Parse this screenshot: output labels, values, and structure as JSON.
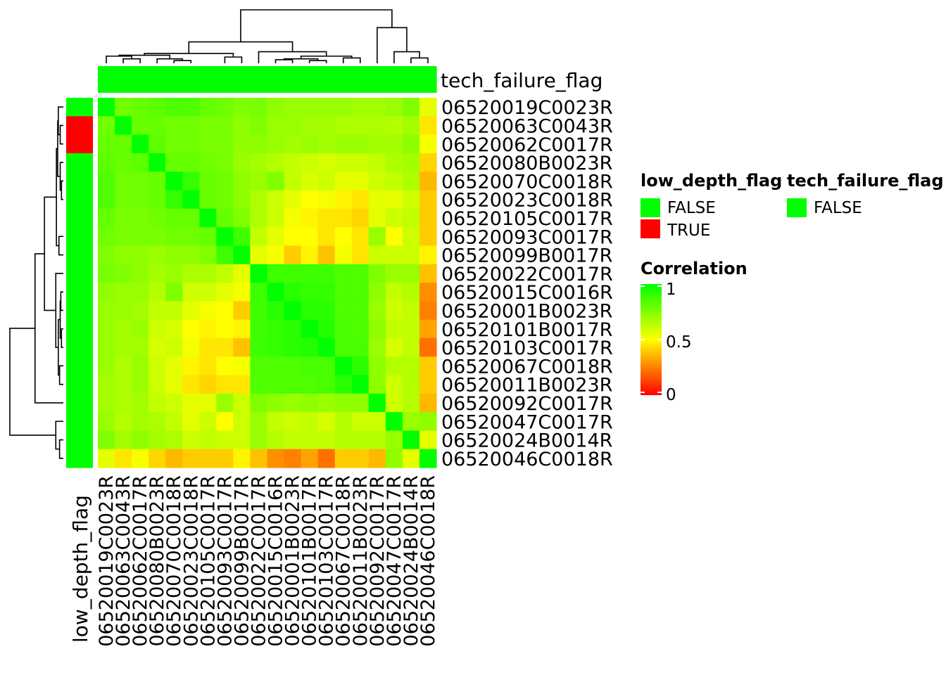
{
  "chart_data": {
    "type": "heatmap",
    "title": "",
    "row_labels": [
      "06520019C0023R",
      "06520063C0043R",
      "06520062C0017R",
      "06520080B0023R",
      "06520070C0018R",
      "06520023C0018R",
      "06520105C0017R",
      "06520093C0017R",
      "06520099B0017R",
      "06520022C0017R",
      "06520015C0016R",
      "06520001B0023R",
      "06520101B0017R",
      "06520103C0017R",
      "06520067C0018R",
      "06520011B0023R",
      "06520092C0017R",
      "06520047C0017R",
      "06520024B0014R",
      "06520046C0018R"
    ],
    "col_labels": [
      "06520019C0023R",
      "06520063C0043R",
      "06520062C0017R",
      "06520080B0023R",
      "06520070C0018R",
      "06520023C0018R",
      "06520105C0017R",
      "06520093C0017R",
      "06520099B0017R",
      "06520022C0017R",
      "06520015C0016R",
      "06520001B0023R",
      "06520101B0017R",
      "06520103C0017R",
      "06520067C0018R",
      "06520011B0023R",
      "06520092C0017R",
      "06520047C0017R",
      "06520024B0014R",
      "06520046C0018R"
    ],
    "values": [
      [
        1.0,
        0.78,
        0.8,
        0.82,
        0.85,
        0.85,
        0.8,
        0.78,
        0.75,
        0.76,
        0.72,
        0.7,
        0.7,
        0.7,
        0.7,
        0.68,
        0.68,
        0.7,
        0.75,
        0.55
      ],
      [
        0.78,
        1.0,
        0.8,
        0.8,
        0.78,
        0.78,
        0.76,
        0.76,
        0.72,
        0.75,
        0.7,
        0.7,
        0.68,
        0.68,
        0.66,
        0.66,
        0.66,
        0.65,
        0.68,
        0.45
      ],
      [
        0.8,
        0.8,
        1.0,
        0.82,
        0.78,
        0.78,
        0.76,
        0.76,
        0.72,
        0.72,
        0.7,
        0.68,
        0.7,
        0.68,
        0.7,
        0.7,
        0.68,
        0.68,
        0.72,
        0.52
      ],
      [
        0.82,
        0.8,
        0.82,
        1.0,
        0.8,
        0.8,
        0.78,
        0.76,
        0.7,
        0.68,
        0.65,
        0.62,
        0.6,
        0.58,
        0.6,
        0.6,
        0.62,
        0.66,
        0.68,
        0.42
      ],
      [
        0.85,
        0.78,
        0.78,
        0.8,
        1.0,
        0.9,
        0.8,
        0.78,
        0.72,
        0.7,
        0.75,
        0.62,
        0.58,
        0.6,
        0.55,
        0.55,
        0.6,
        0.62,
        0.66,
        0.36
      ],
      [
        0.85,
        0.78,
        0.78,
        0.8,
        0.9,
        1.0,
        0.8,
        0.78,
        0.72,
        0.66,
        0.6,
        0.55,
        0.5,
        0.52,
        0.48,
        0.45,
        0.55,
        0.55,
        0.6,
        0.4
      ],
      [
        0.8,
        0.76,
        0.76,
        0.78,
        0.8,
        0.8,
        1.0,
        0.8,
        0.75,
        0.66,
        0.6,
        0.52,
        0.48,
        0.45,
        0.45,
        0.42,
        0.55,
        0.6,
        0.62,
        0.4
      ],
      [
        0.78,
        0.76,
        0.76,
        0.76,
        0.78,
        0.78,
        0.8,
        1.0,
        0.88,
        0.62,
        0.55,
        0.5,
        0.5,
        0.45,
        0.5,
        0.45,
        0.7,
        0.5,
        0.6,
        0.4
      ],
      [
        0.75,
        0.72,
        0.72,
        0.7,
        0.72,
        0.72,
        0.75,
        0.88,
        1.0,
        0.55,
        0.52,
        0.4,
        0.48,
        0.38,
        0.52,
        0.45,
        0.6,
        0.6,
        0.6,
        0.48
      ],
      [
        0.76,
        0.75,
        0.72,
        0.68,
        0.7,
        0.66,
        0.66,
        0.62,
        0.55,
        1.0,
        0.88,
        0.88,
        0.88,
        0.88,
        0.85,
        0.85,
        0.75,
        0.7,
        0.7,
        0.38
      ],
      [
        0.72,
        0.7,
        0.7,
        0.65,
        0.75,
        0.6,
        0.6,
        0.55,
        0.52,
        0.88,
        1.0,
        0.92,
        0.9,
        0.9,
        0.85,
        0.85,
        0.72,
        0.62,
        0.65,
        0.28
      ],
      [
        0.7,
        0.7,
        0.68,
        0.62,
        0.62,
        0.55,
        0.52,
        0.5,
        0.4,
        0.88,
        0.92,
        1.0,
        0.92,
        0.92,
        0.85,
        0.85,
        0.7,
        0.6,
        0.62,
        0.25
      ],
      [
        0.7,
        0.68,
        0.7,
        0.6,
        0.58,
        0.5,
        0.48,
        0.5,
        0.48,
        0.88,
        0.9,
        0.92,
        1.0,
        0.93,
        0.86,
        0.85,
        0.72,
        0.62,
        0.62,
        0.32
      ],
      [
        0.7,
        0.68,
        0.68,
        0.58,
        0.6,
        0.52,
        0.45,
        0.45,
        0.38,
        0.88,
        0.9,
        0.92,
        0.93,
        1.0,
        0.86,
        0.86,
        0.7,
        0.58,
        0.62,
        0.22
      ],
      [
        0.7,
        0.66,
        0.7,
        0.6,
        0.55,
        0.48,
        0.45,
        0.5,
        0.52,
        0.85,
        0.85,
        0.85,
        0.86,
        0.86,
        1.0,
        0.92,
        0.72,
        0.65,
        0.65,
        0.4
      ],
      [
        0.68,
        0.66,
        0.7,
        0.6,
        0.55,
        0.45,
        0.42,
        0.45,
        0.45,
        0.85,
        0.85,
        0.85,
        0.85,
        0.86,
        0.92,
        1.0,
        0.72,
        0.6,
        0.65,
        0.4
      ],
      [
        0.68,
        0.66,
        0.68,
        0.62,
        0.6,
        0.55,
        0.55,
        0.7,
        0.6,
        0.75,
        0.72,
        0.7,
        0.72,
        0.7,
        0.72,
        0.72,
        1.0,
        0.6,
        0.65,
        0.36
      ],
      [
        0.7,
        0.65,
        0.68,
        0.66,
        0.62,
        0.55,
        0.6,
        0.5,
        0.6,
        0.7,
        0.62,
        0.6,
        0.62,
        0.58,
        0.65,
        0.6,
        0.6,
        1.0,
        0.7,
        0.72
      ],
      [
        0.75,
        0.68,
        0.72,
        0.68,
        0.66,
        0.6,
        0.62,
        0.6,
        0.6,
        0.7,
        0.65,
        0.62,
        0.62,
        0.62,
        0.65,
        0.65,
        0.65,
        0.7,
        1.0,
        0.55
      ],
      [
        0.55,
        0.45,
        0.52,
        0.42,
        0.36,
        0.4,
        0.4,
        0.4,
        0.48,
        0.38,
        0.28,
        0.25,
        0.32,
        0.22,
        0.4,
        0.4,
        0.36,
        0.72,
        0.55,
        1.0
      ]
    ],
    "color_scale": {
      "low": "#ff0000",
      "mid": "#ffff00",
      "high": "#00ff00",
      "min": 0,
      "mid_value": 0.5,
      "max": 1
    },
    "row_annotation": {
      "name": "low_depth_flag",
      "values": [
        "FALSE",
        "TRUE",
        "TRUE",
        "FALSE",
        "FALSE",
        "FALSE",
        "FALSE",
        "FALSE",
        "FALSE",
        "FALSE",
        "FALSE",
        "FALSE",
        "FALSE",
        "FALSE",
        "FALSE",
        "FALSE",
        "FALSE",
        "FALSE",
        "FALSE",
        "FALSE"
      ]
    },
    "col_annotation": {
      "name": "tech_failure_flag",
      "values": [
        "FALSE",
        "FALSE",
        "FALSE",
        "FALSE",
        "FALSE",
        "FALSE",
        "FALSE",
        "FALSE",
        "FALSE",
        "FALSE",
        "FALSE",
        "FALSE",
        "FALSE",
        "FALSE",
        "FALSE",
        "FALSE",
        "FALSE",
        "FALSE",
        "FALSE",
        "FALSE"
      ]
    },
    "legends": {
      "low_depth_flag": {
        "title": "low_depth_flag",
        "entries": [
          {
            "label": "FALSE",
            "color": "#00ff00"
          },
          {
            "label": "TRUE",
            "color": "#ff0000"
          }
        ]
      },
      "tech_failure_flag": {
        "title": "tech_failure_flag",
        "entries": [
          {
            "label": "FALSE",
            "color": "#00ff00"
          }
        ]
      },
      "correlation": {
        "title": "Correlation",
        "ticks": [
          "1",
          "0.5",
          "0"
        ],
        "tick_values": [
          1,
          0.5,
          0
        ]
      }
    },
    "col_dendrogram": [
      [
        18,
        19,
        0.06
      ],
      [
        17,
        20,
        0.13
      ],
      [
        10,
        11,
        0.04
      ],
      [
        12,
        13,
        0.03
      ],
      [
        22,
        23,
        0.05
      ],
      [
        14,
        15,
        0.06
      ],
      [
        24,
        25,
        0.08
      ],
      [
        9,
        26,
        0.13
      ],
      [
        1,
        2,
        0.05
      ],
      [
        0,
        28,
        0.08
      ],
      [
        4,
        5,
        0.03
      ],
      [
        3,
        30,
        0.05
      ],
      [
        29,
        31,
        0.09
      ],
      [
        7,
        8,
        0.07
      ],
      [
        32,
        33,
        0.11
      ],
      [
        34,
        27,
        0.24
      ],
      [
        16,
        21,
        0.4
      ],
      [
        35,
        36,
        0.6
      ]
    ],
    "row_dendrogram": [
      [
        18,
        19,
        0.06
      ],
      [
        17,
        20,
        0.12
      ],
      [
        10,
        11,
        0.04
      ],
      [
        12,
        13,
        0.03
      ],
      [
        22,
        23,
        0.05
      ],
      [
        14,
        15,
        0.06
      ],
      [
        24,
        25,
        0.08
      ],
      [
        9,
        26,
        0.12
      ],
      [
        1,
        2,
        0.05
      ],
      [
        0,
        28,
        0.08
      ],
      [
        4,
        5,
        0.03
      ],
      [
        3,
        30,
        0.05
      ],
      [
        29,
        31,
        0.09
      ],
      [
        7,
        8,
        0.07
      ],
      [
        32,
        33,
        0.11
      ],
      [
        34,
        27,
        0.3
      ],
      [
        16,
        35,
        0.45
      ],
      [
        36,
        21,
        0.85
      ]
    ]
  }
}
